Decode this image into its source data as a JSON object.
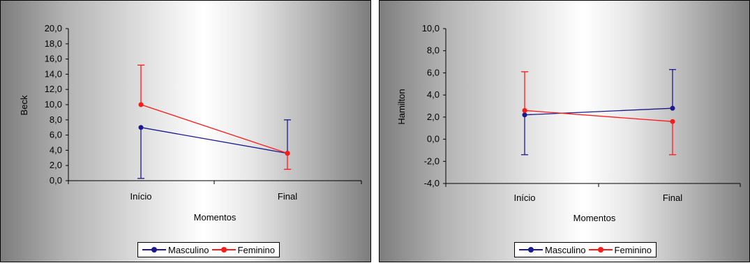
{
  "charts": [
    {
      "type": "line",
      "categories": [
        "Início",
        "Final"
      ],
      "xlabel": "Momentos",
      "ylabel": "Beck",
      "ylim": [
        0,
        20
      ],
      "yticks": [
        "0,0",
        "2,0",
        "4,0",
        "6,0",
        "8,0",
        "10,0",
        "12,0",
        "14,0",
        "16,0",
        "18,0",
        "20,0"
      ],
      "series": [
        {
          "name": "Masculino",
          "color": "#1a1a8c",
          "values": [
            7.0,
            3.6
          ],
          "err_low": [
            0.3,
            3.6
          ],
          "err_high": [
            7.0,
            8.0
          ]
        },
        {
          "name": "Feminino",
          "color": "#ff1a1a",
          "values": [
            10.0,
            3.6
          ],
          "err_low": [
            10.0,
            1.5
          ],
          "err_high": [
            15.2,
            3.6
          ]
        }
      ]
    },
    {
      "type": "line",
      "categories": [
        "Início",
        "Final"
      ],
      "xlabel": "Momentos",
      "ylabel": "Hamilton",
      "ylim": [
        -4,
        10
      ],
      "yticks": [
        "-4,0",
        "-2,0",
        "0,0",
        "2,0",
        "4,0",
        "6,0",
        "8,0",
        "10,0"
      ],
      "series": [
        {
          "name": "Masculino",
          "color": "#1a1a8c",
          "values": [
            2.2,
            2.8
          ],
          "err_low": [
            -1.4,
            2.8
          ],
          "err_high": [
            2.2,
            6.3
          ]
        },
        {
          "name": "Feminino",
          "color": "#ff1a1a",
          "values": [
            2.6,
            1.6
          ],
          "err_low": [
            2.6,
            -1.4
          ],
          "err_high": [
            6.1,
            1.6
          ]
        }
      ]
    }
  ]
}
